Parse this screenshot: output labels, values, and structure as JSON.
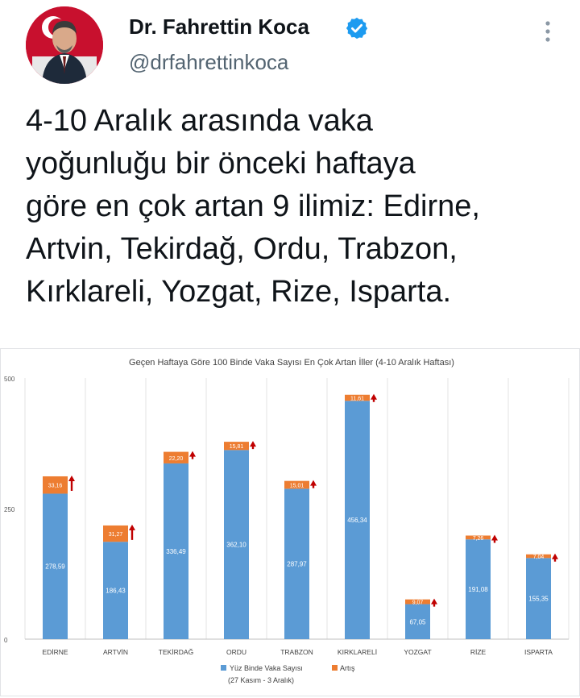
{
  "tweet": {
    "display_name": "Dr. Fahrettin Koca",
    "handle": "@drfahrettinkoca",
    "text": "4-10 Aralık arasında vaka\nyoğunluğu bir önceki haftaya\ngöre en çok artan 9 ilimiz: Edirne,\nArtvin, Tekirdağ, Ordu, Trabzon,\nKırklareli, Yozgat, Rize, Isparta."
  },
  "icons": {
    "verified": "verified-badge-icon",
    "more": "more-options-icon",
    "increase": "red-up-arrow-icon"
  },
  "colors": {
    "base_series": "#5b9bd5",
    "increase_series": "#ed7d31",
    "arrow": "#c00000",
    "verified": "#1d9bf0"
  },
  "chart_data": {
    "type": "bar",
    "stacked": true,
    "title": "Geçen Haftaya Göre 100 Binde Vaka Sayısı En Çok Artan İller (4-10 Aralık Haftası)",
    "categories": [
      "EDİRNE",
      "ARTVİN",
      "TEKİRDAĞ",
      "ORDU",
      "TRABZON",
      "KIRKLARELİ",
      "YOZGAT",
      "RİZE",
      "ISPARTA"
    ],
    "series": [
      {
        "name": "Yüz Binde Vaka Sayısı",
        "name_line2": "(27 Kasım - 3 Aralık)",
        "values": [
          278.59,
          186.43,
          336.49,
          362.1,
          287.97,
          456.34,
          67.05,
          191.08,
          155.35
        ],
        "labels": [
          "278,59",
          "186,43",
          "336,49",
          "362,10",
          "287,97",
          "456,34",
          "67,05",
          "191,08",
          "155,35"
        ]
      },
      {
        "name": "Artış",
        "values": [
          33.16,
          31.27,
          22.2,
          15.81,
          15.01,
          11.61,
          9.07,
          7.26,
          7.04
        ],
        "labels": [
          "33,16",
          "31,27",
          "22,20",
          "15,81",
          "15,01",
          "11,61",
          "9,07",
          "7,26",
          "7,04"
        ]
      }
    ],
    "ylim": [
      0,
      500
    ],
    "yticks": [
      "0",
      "250",
      "500"
    ],
    "ytick_values": [
      0,
      250,
      500
    ],
    "grid": "vertical",
    "legend": "bottom"
  }
}
